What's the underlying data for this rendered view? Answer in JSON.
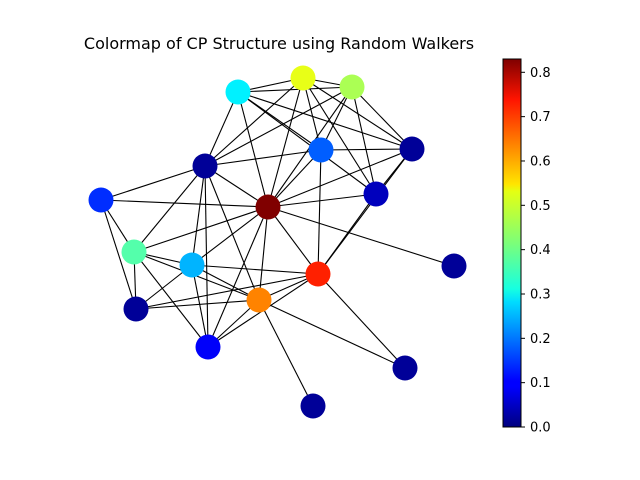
{
  "title": "Colormap of CP Structure using Random Walkers",
  "colorbar": {
    "min": 0.0,
    "max": 0.83,
    "ticks": [
      "0.0",
      "0.1",
      "0.2",
      "0.3",
      "0.4",
      "0.5",
      "0.6",
      "0.7",
      "0.8"
    ],
    "colormap": "jet"
  },
  "nodes": [
    {
      "id": "n0",
      "value": 0.3
    },
    {
      "id": "n1",
      "value": 0.5
    },
    {
      "id": "n2",
      "value": 0.45
    },
    {
      "id": "n3",
      "value": 0.18
    },
    {
      "id": "n4",
      "value": 0.02
    },
    {
      "id": "n5",
      "value": 0.02
    },
    {
      "id": "n6",
      "value": 0.14
    },
    {
      "id": "n7",
      "value": 0.83
    },
    {
      "id": "n8",
      "value": 0.05
    },
    {
      "id": "n9",
      "value": 0.38
    },
    {
      "id": "n10",
      "value": 0.25
    },
    {
      "id": "n11",
      "value": 0.7
    },
    {
      "id": "n12",
      "value": 0.02
    },
    {
      "id": "n13",
      "value": 0.02
    },
    {
      "id": "n14",
      "value": 0.62
    },
    {
      "id": "n15",
      "value": 0.1
    },
    {
      "id": "n16",
      "value": 0.02
    },
    {
      "id": "n17",
      "value": 0.02
    }
  ],
  "edges": [
    [
      "n0",
      "n1"
    ],
    [
      "n0",
      "n2"
    ],
    [
      "n0",
      "n3"
    ],
    [
      "n0",
      "n4"
    ],
    [
      "n0",
      "n5"
    ],
    [
      "n0",
      "n7"
    ],
    [
      "n0",
      "n8"
    ],
    [
      "n1",
      "n2"
    ],
    [
      "n1",
      "n3"
    ],
    [
      "n1",
      "n4"
    ],
    [
      "n1",
      "n5"
    ],
    [
      "n1",
      "n7"
    ],
    [
      "n1",
      "n8"
    ],
    [
      "n2",
      "n3"
    ],
    [
      "n2",
      "n4"
    ],
    [
      "n2",
      "n5"
    ],
    [
      "n2",
      "n7"
    ],
    [
      "n2",
      "n8"
    ],
    [
      "n3",
      "n4"
    ],
    [
      "n3",
      "n5"
    ],
    [
      "n3",
      "n7"
    ],
    [
      "n3",
      "n11"
    ],
    [
      "n4",
      "n7"
    ],
    [
      "n4",
      "n8"
    ],
    [
      "n4",
      "n11"
    ],
    [
      "n5",
      "n6"
    ],
    [
      "n5",
      "n7"
    ],
    [
      "n5",
      "n9"
    ],
    [
      "n5",
      "n10"
    ],
    [
      "n5",
      "n14"
    ],
    [
      "n5",
      "n15"
    ],
    [
      "n6",
      "n7"
    ],
    [
      "n6",
      "n9"
    ],
    [
      "n6",
      "n12"
    ],
    [
      "n7",
      "n8"
    ],
    [
      "n7",
      "n9"
    ],
    [
      "n7",
      "n10"
    ],
    [
      "n7",
      "n11"
    ],
    [
      "n7",
      "n14"
    ],
    [
      "n7",
      "n13"
    ],
    [
      "n7",
      "n15"
    ],
    [
      "n8",
      "n11"
    ],
    [
      "n9",
      "n10"
    ],
    [
      "n9",
      "n12"
    ],
    [
      "n9",
      "n14"
    ],
    [
      "n9",
      "n15"
    ],
    [
      "n10",
      "n11"
    ],
    [
      "n10",
      "n12"
    ],
    [
      "n10",
      "n14"
    ],
    [
      "n10",
      "n15"
    ],
    [
      "n11",
      "n14"
    ],
    [
      "n11",
      "n12"
    ],
    [
      "n11",
      "n16"
    ],
    [
      "n12",
      "n14"
    ],
    [
      "n14",
      "n15"
    ],
    [
      "n14",
      "n17"
    ],
    [
      "n14",
      "n16"
    ],
    [
      "n15",
      "n11"
    ]
  ]
}
